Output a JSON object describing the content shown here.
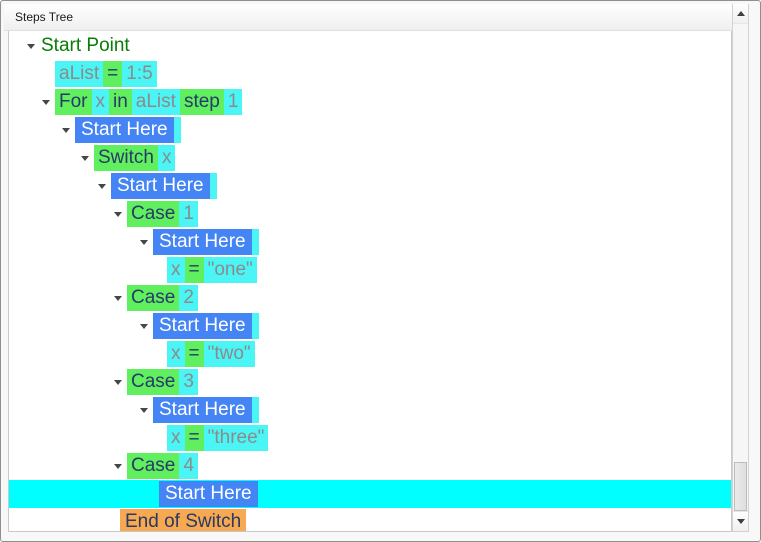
{
  "window": {
    "title": "Steps Tree"
  },
  "colors": {
    "selection_bg": "#00FFFF",
    "expander": "#474747",
    "header_text": "#1A1A1A",
    "scroll_arrow": "#3E3E3E"
  },
  "styles": {
    "root": {
      "color": "#077D07",
      "bg": "",
      "pad": "0 1px"
    },
    "keyword": {
      "color": "#293A66",
      "bg": "#5FEF5F",
      "pad": "0 4px"
    },
    "value": {
      "color": "#8B8B8B",
      "bg": "#4BF5F5",
      "pad": "0 4px"
    },
    "flow": {
      "color": "#FFFFFF",
      "bg": "#4484F4",
      "pad": "0 6px"
    },
    "end": {
      "color": "#293A66",
      "bg": "#F6A950",
      "pad": "0 5px"
    }
  },
  "tree": {
    "rows": [
      {
        "name": "start-point",
        "indent": 31,
        "arrow": true,
        "selected": false,
        "tokens": [
          {
            "text": "Start Point",
            "style": "root"
          }
        ]
      },
      {
        "name": "assign-alist",
        "indent": 46,
        "arrow": false,
        "selected": false,
        "tokens": [
          {
            "text": "aList",
            "style": "value"
          },
          {
            "text": "=",
            "style": "keyword"
          },
          {
            "text": "1:5",
            "style": "value"
          }
        ]
      },
      {
        "name": "for-loop",
        "indent": 46,
        "arrow": true,
        "selected": false,
        "tokens": [
          {
            "text": "For",
            "style": "keyword"
          },
          {
            "text": "x",
            "style": "value"
          },
          {
            "text": "in",
            "style": "keyword"
          },
          {
            "text": "aList",
            "style": "value"
          },
          {
            "text": "step",
            "style": "keyword"
          },
          {
            "text": "1",
            "style": "value"
          }
        ]
      },
      {
        "name": "start-here-for",
        "indent": 66,
        "arrow": true,
        "selected": false,
        "tokens": [
          {
            "text": "Start Here",
            "style": "flow"
          },
          {
            "text": "",
            "style": "value"
          }
        ]
      },
      {
        "name": "switch-x",
        "indent": 85,
        "arrow": true,
        "selected": false,
        "tokens": [
          {
            "text": "Switch",
            "style": "keyword"
          },
          {
            "text": "x",
            "style": "value"
          }
        ]
      },
      {
        "name": "start-here-switch",
        "indent": 102,
        "arrow": true,
        "selected": false,
        "tokens": [
          {
            "text": "Start Here",
            "style": "flow"
          },
          {
            "text": "",
            "style": "value"
          }
        ]
      },
      {
        "name": "case-1",
        "indent": 118,
        "arrow": true,
        "selected": false,
        "tokens": [
          {
            "text": "Case",
            "style": "keyword"
          },
          {
            "text": "1",
            "style": "value"
          }
        ]
      },
      {
        "name": "start-here-case-1",
        "indent": 144,
        "arrow": true,
        "selected": false,
        "tokens": [
          {
            "text": "Start Here",
            "style": "flow"
          },
          {
            "text": "",
            "style": "value"
          }
        ]
      },
      {
        "name": "assign-x-one",
        "indent": 158,
        "arrow": false,
        "selected": false,
        "tokens": [
          {
            "text": "x",
            "style": "value"
          },
          {
            "text": "=",
            "style": "keyword"
          },
          {
            "text": "\"one\"",
            "style": "value"
          }
        ]
      },
      {
        "name": "case-2",
        "indent": 118,
        "arrow": true,
        "selected": false,
        "tokens": [
          {
            "text": "Case",
            "style": "keyword"
          },
          {
            "text": "2",
            "style": "value"
          }
        ]
      },
      {
        "name": "start-here-case-2",
        "indent": 144,
        "arrow": true,
        "selected": false,
        "tokens": [
          {
            "text": "Start Here",
            "style": "flow"
          },
          {
            "text": "",
            "style": "value"
          }
        ]
      },
      {
        "name": "assign-x-two",
        "indent": 158,
        "arrow": false,
        "selected": false,
        "tokens": [
          {
            "text": "x",
            "style": "value"
          },
          {
            "text": "=",
            "style": "keyword"
          },
          {
            "text": "\"two\"",
            "style": "value"
          }
        ]
      },
      {
        "name": "case-3",
        "indent": 118,
        "arrow": true,
        "selected": false,
        "tokens": [
          {
            "text": "Case",
            "style": "keyword"
          },
          {
            "text": "3",
            "style": "value"
          }
        ]
      },
      {
        "name": "start-here-case-3",
        "indent": 144,
        "arrow": true,
        "selected": false,
        "tokens": [
          {
            "text": "Start Here",
            "style": "flow"
          },
          {
            "text": "",
            "style": "value"
          }
        ]
      },
      {
        "name": "assign-x-three",
        "indent": 158,
        "arrow": false,
        "selected": false,
        "tokens": [
          {
            "text": "x",
            "style": "value"
          },
          {
            "text": "=",
            "style": "keyword"
          },
          {
            "text": "\"three\"",
            "style": "value"
          }
        ]
      },
      {
        "name": "case-4",
        "indent": 118,
        "arrow": true,
        "selected": false,
        "tokens": [
          {
            "text": "Case",
            "style": "keyword"
          },
          {
            "text": "4",
            "style": "value"
          }
        ]
      },
      {
        "name": "start-here-case-4",
        "indent": 150,
        "arrow": false,
        "selected": true,
        "tokens": [
          {
            "text": "Start Here",
            "style": "flow"
          }
        ]
      },
      {
        "name": "end-of-switch",
        "indent": 111,
        "arrow": false,
        "selected": false,
        "tokens": [
          {
            "text": "End of Switch",
            "style": "end"
          }
        ]
      }
    ]
  }
}
